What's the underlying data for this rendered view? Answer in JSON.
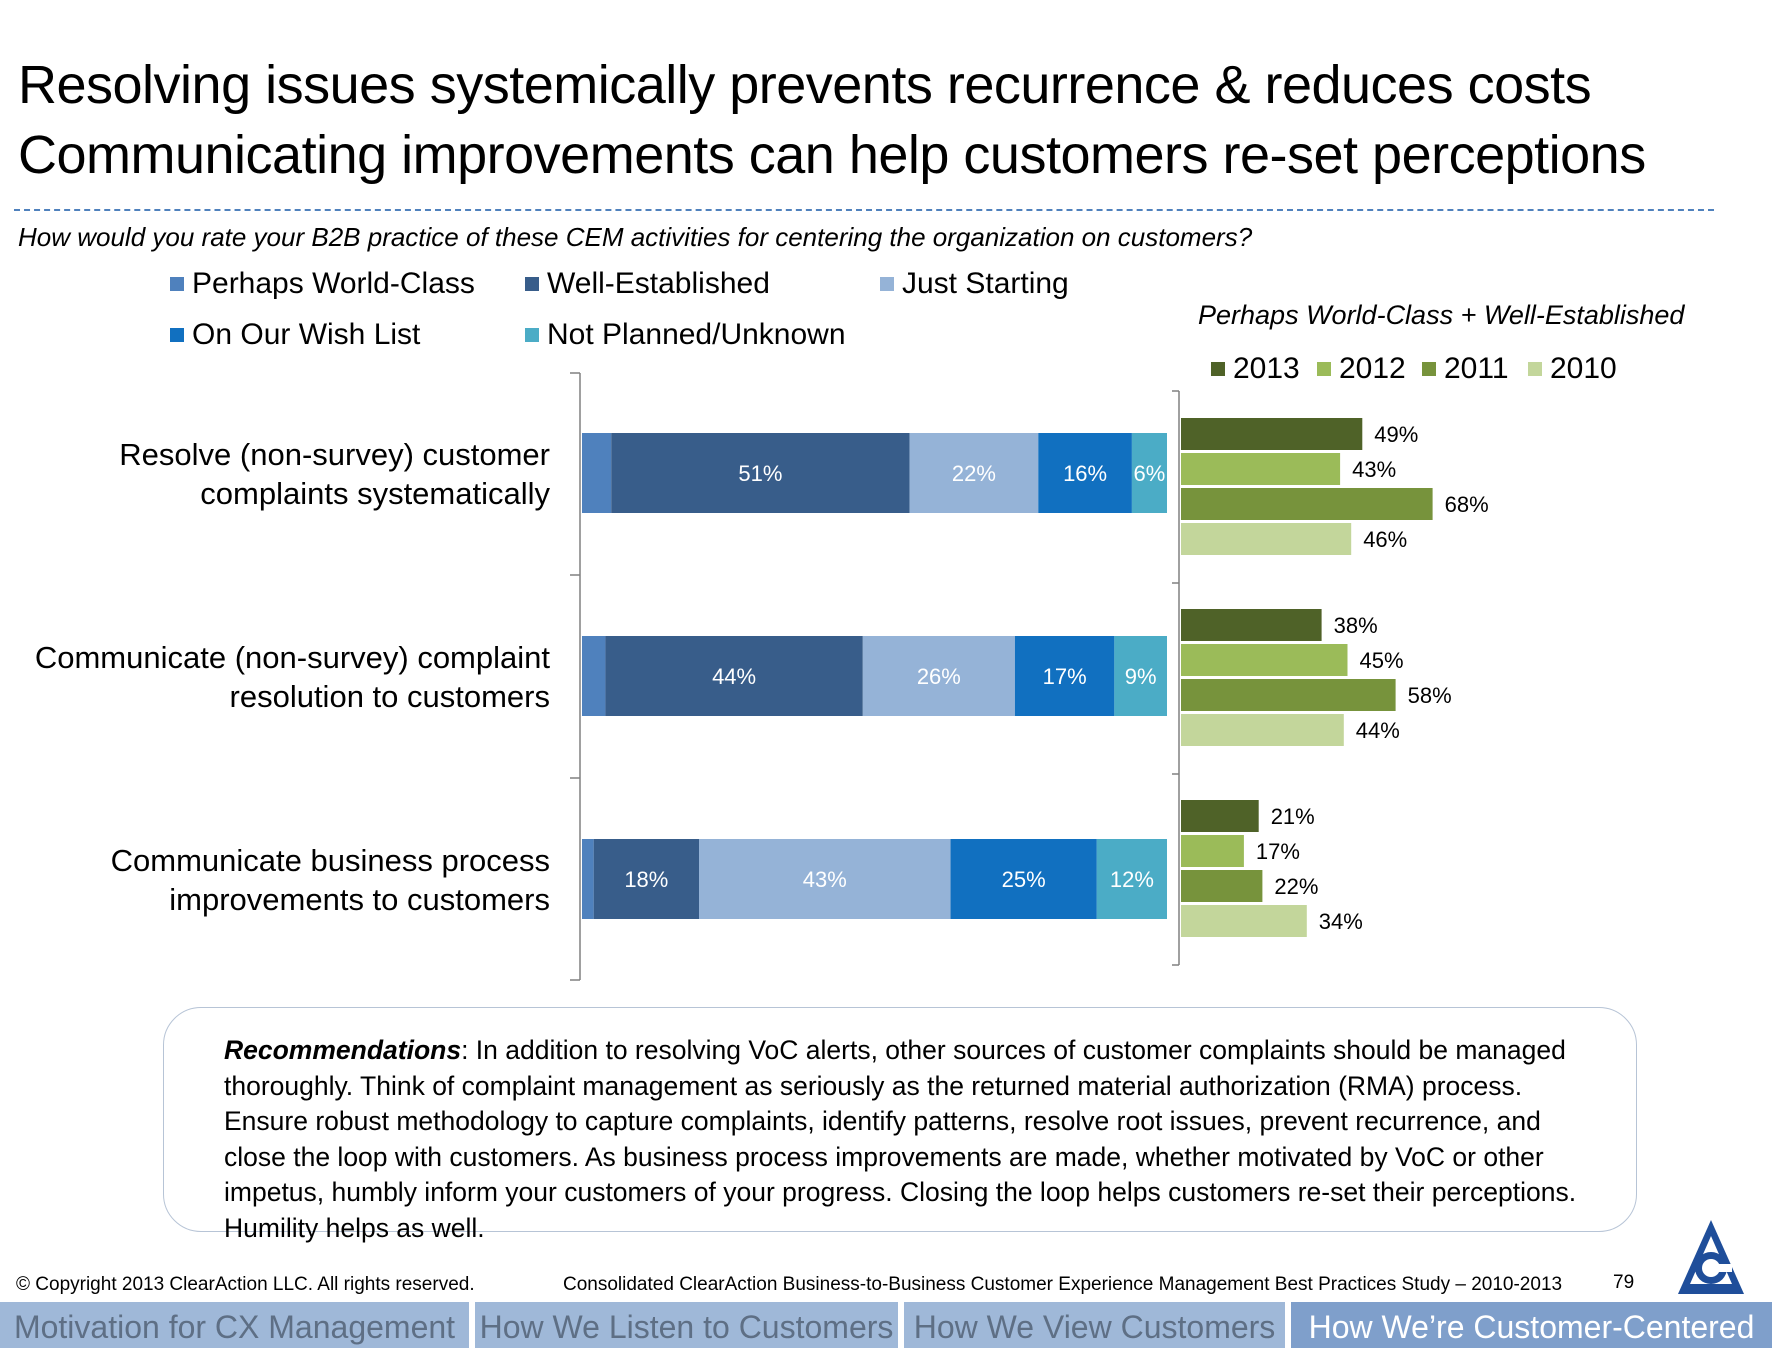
{
  "title": {
    "line1": "Resolving issues systemically prevents recurrence & reduces costs",
    "line2": "Communicating improvements can help customers re-set perceptions"
  },
  "question": "How would you rate your B2B practice of these CEM activities for centering the organization on customers?",
  "legend_left": [
    {
      "label": "Perhaps World-Class",
      "color": "#4f81bd"
    },
    {
      "label": "Well-Established",
      "color": "#385d8a"
    },
    {
      "label": "Just Starting",
      "color": "#95b3d7"
    },
    {
      "label": "On Our Wish List",
      "color": "#1170c0"
    },
    {
      "label": "Not Planned/Unknown",
      "color": "#4bacc6"
    }
  ],
  "legend_right_title": "Perhaps World-Class + Well-Established",
  "legend_right": [
    {
      "label": "2013",
      "color": "#4f6228"
    },
    {
      "label": "2012",
      "color": "#9bbb59"
    },
    {
      "label": "2011",
      "color": "#77933c"
    },
    {
      "label": "2010",
      "color": "#c3d69b"
    }
  ],
  "chart_data": [
    {
      "type": "bar",
      "orientation": "horizontal",
      "stacked": true,
      "percent_stacked": true,
      "categories": [
        "Resolve (non-survey) customer complaints systematically",
        "Communicate (non-survey) complaint resolution to customers",
        "Communicate business process improvements to customers"
      ],
      "series": [
        {
          "name": "Perhaps World-Class",
          "values": [
            5,
            4,
            2
          ],
          "labels": [
            "",
            "",
            ""
          ]
        },
        {
          "name": "Well-Established",
          "values": [
            51,
            44,
            18
          ],
          "labels": [
            "51%",
            "44%",
            "18%"
          ]
        },
        {
          "name": "Just Starting",
          "values": [
            22,
            26,
            43
          ],
          "labels": [
            "22%",
            "26%",
            "43%"
          ]
        },
        {
          "name": "On Our Wish List",
          "values": [
            16,
            17,
            25
          ],
          "labels": [
            "16%",
            "17%",
            "25%"
          ]
        },
        {
          "name": "Not Planned/Unknown",
          "values": [
            6,
            9,
            12
          ],
          "labels": [
            "6%",
            "9%",
            "12%"
          ]
        }
      ],
      "grid": false
    },
    {
      "type": "bar",
      "orientation": "horizontal",
      "title": "Perhaps World-Class + Well-Established",
      "categories": [
        "Resolve (non-survey) customer complaints systematically",
        "Communicate (non-survey) complaint resolution to customers",
        "Communicate business process improvements to customers"
      ],
      "series": [
        {
          "name": "2013",
          "values": [
            49,
            38,
            21
          ],
          "labels": [
            "49%",
            "38%",
            "21%"
          ]
        },
        {
          "name": "2012",
          "values": [
            43,
            45,
            17
          ],
          "labels": [
            "43%",
            "45%",
            "17%"
          ]
        },
        {
          "name": "2011",
          "values": [
            68,
            58,
            22
          ],
          "labels": [
            "68%",
            "58%",
            "22%"
          ]
        },
        {
          "name": "2010",
          "values": [
            46,
            44,
            34
          ],
          "labels": [
            "46%",
            "44%",
            "34%"
          ]
        }
      ],
      "xlim": [
        0,
        100
      ],
      "grid": false
    }
  ],
  "recommendation": {
    "lead": "Recommendations",
    "text": ": In addition to resolving VoC alerts, other sources of customer complaints should be managed thoroughly. Think of complaint management as seriously as the returned material authorization (RMA) process. Ensure robust methodology to capture complaints, identify patterns, resolve root issues, prevent recurrence, and close the loop with customers.  As business process improvements are made, whether motivated by VoC or other impetus, humbly inform your customers of your progress.  Closing the loop helps customers re-set their perceptions. Humility helps as well."
  },
  "footer": {
    "copyright": "© Copyright 2013 ClearAction LLC. All rights reserved.",
    "study": "Consolidated ClearAction Business-to-Business Customer Experience Management Best Practices Study – 2010-2013",
    "page": "79"
  },
  "nav_tabs": [
    {
      "label": "Motivation for CX Management"
    },
    {
      "label": "How We Listen to Customers"
    },
    {
      "label": "How We View Customers"
    },
    {
      "label": "How We’re Customer-Centered"
    }
  ]
}
